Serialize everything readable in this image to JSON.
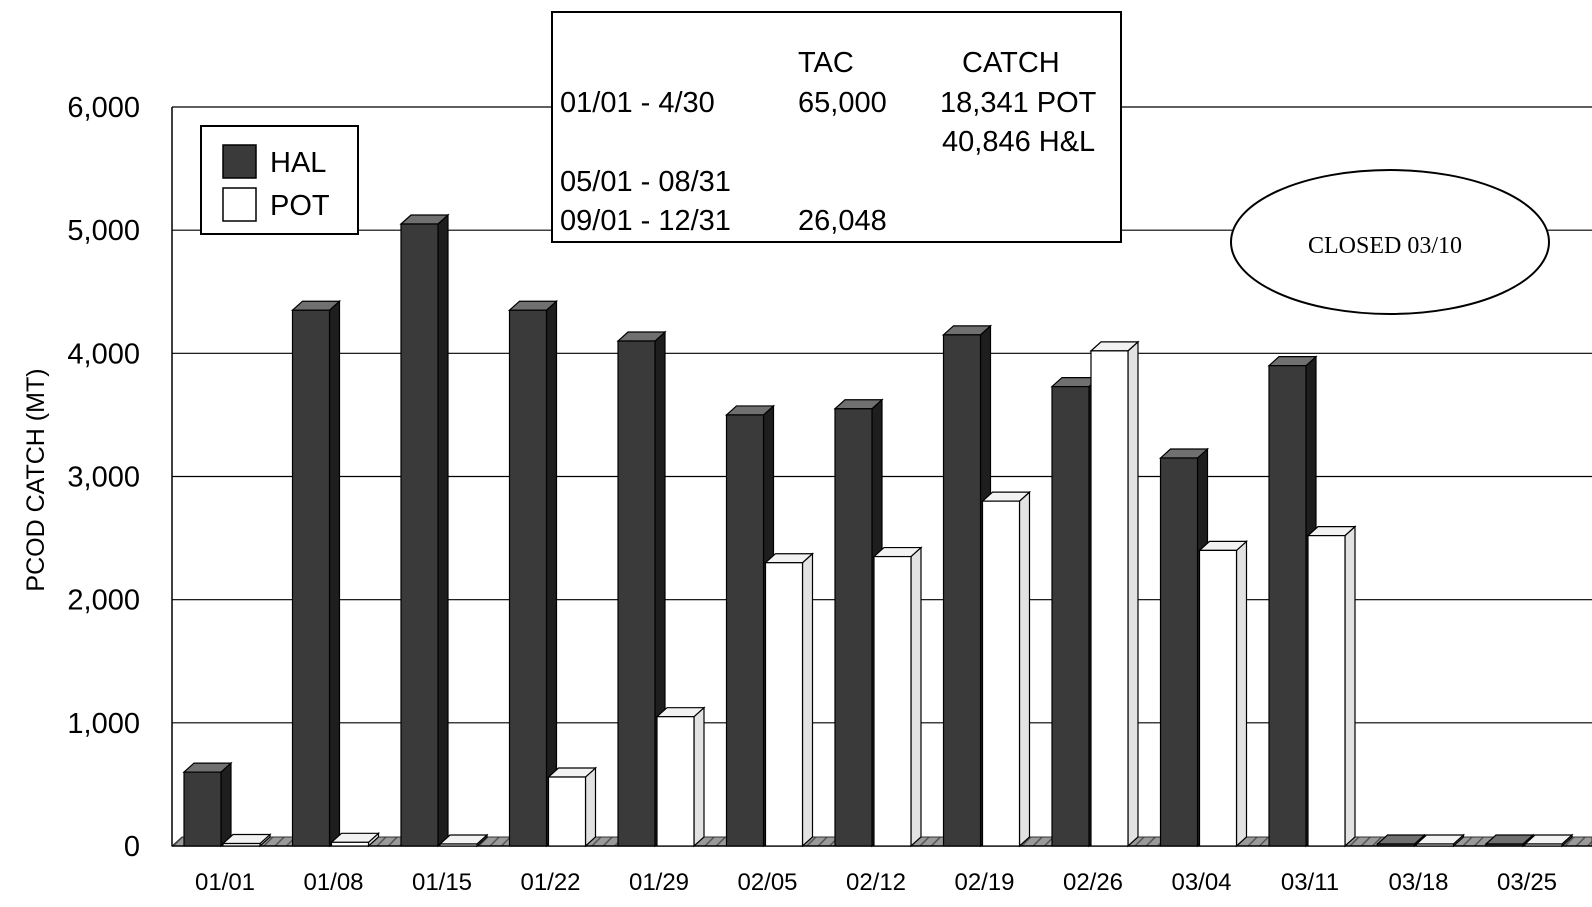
{
  "chart_data": {
    "type": "bar",
    "ylabel": "PCOD CATCH (MT)",
    "ylim": [
      0,
      6000
    ],
    "yticks": [
      0,
      1000,
      2000,
      3000,
      4000,
      5000,
      6000
    ],
    "ytick_labels": [
      "0",
      "1,000",
      "2,000",
      "3,000",
      "4,000",
      "5,000",
      "6,000"
    ],
    "categories": [
      "01/01",
      "01/08",
      "01/15",
      "01/22",
      "01/29",
      "02/05",
      "02/12",
      "02/19",
      "02/26",
      "03/04",
      "03/11",
      "03/18",
      "03/25"
    ],
    "series": [
      {
        "name": "HAL",
        "color": "#3a3a3a",
        "values": [
          600,
          4350,
          5050,
          4350,
          4100,
          3500,
          3550,
          4150,
          3730,
          3150,
          3900,
          0,
          0
        ]
      },
      {
        "name": "POT",
        "color": "#ffffff",
        "values": [
          20,
          30,
          0,
          560,
          1050,
          2300,
          2350,
          2800,
          4020,
          2400,
          2520,
          0,
          0
        ]
      }
    ],
    "grid": true,
    "legend_position": "top-left",
    "tac_table": {
      "header": [
        "",
        "TAC",
        "CATCH"
      ],
      "rows": [
        [
          "01/01 - 4/30",
          "65,000",
          "18,341 POT"
        ],
        [
          "",
          "",
          "40,846 H&L"
        ],
        [
          "05/01 - 08/31",
          "",
          ""
        ],
        [
          "09/01 - 12/31",
          "26,048",
          ""
        ]
      ]
    },
    "annotation": "CLOSED 03/10"
  }
}
